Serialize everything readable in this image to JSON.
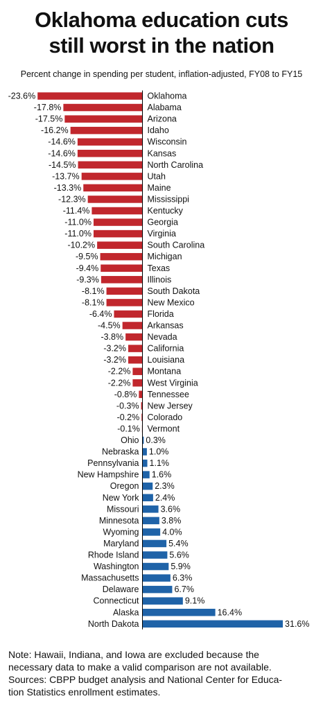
{
  "title_line1": "Oklahoma education cuts",
  "title_line2": "still worst in the nation",
  "subtitle": "Percent change in spending per student, inflation-adjusted, FY08 to FY15",
  "note_lines": [
    "Note:  Hawaii, Indiana, and Iowa are excluded because the",
    "necessary data to make a valid comparison are not available.",
    "Sources: CBPP budget analysis and National Center for Educa-",
    "tion Statistics enrollment estimates."
  ],
  "colors": {
    "negative": "#c1272d",
    "positive": "#1f63a8",
    "axis": "#000000"
  },
  "chart_data": {
    "type": "bar",
    "orientation": "horizontal",
    "value_unit": "%",
    "categories": [
      "Oklahoma",
      "Alabama",
      "Arizona",
      "Idaho",
      "Wisconsin",
      "Kansas",
      "North Carolina",
      "Utah",
      "Maine",
      "Mississippi",
      "Kentucky",
      "Georgia",
      "Virginia",
      "South Carolina",
      "Michigan",
      "Texas",
      "Illinois",
      "South Dakota",
      "New Mexico",
      "Florida",
      "Arkansas",
      "Nevada",
      "California",
      "Louisiana",
      "Montana",
      "West Virginia",
      "Tennessee",
      "New Jersey",
      "Colorado",
      "Vermont",
      "Ohio",
      "Nebraska",
      "Pennsylvania",
      "New Hampshire",
      "Oregon",
      "New York",
      "Missouri",
      "Minnesota",
      "Wyoming",
      "Maryland",
      "Rhode Island",
      "Washington",
      "Massachusetts",
      "Delaware",
      "Connecticut",
      "Alaska",
      "North Dakota"
    ],
    "values": [
      -23.6,
      -17.8,
      -17.5,
      -16.2,
      -14.6,
      -14.6,
      -14.5,
      -13.7,
      -13.3,
      -12.3,
      -11.4,
      -11.0,
      -11.0,
      -10.2,
      -9.5,
      -9.4,
      -9.3,
      -8.1,
      -8.1,
      -6.4,
      -4.5,
      -3.8,
      -3.2,
      -3.2,
      -2.2,
      -2.2,
      -0.8,
      -0.3,
      -0.2,
      -0.1,
      0.3,
      1.0,
      1.1,
      1.6,
      2.3,
      2.4,
      3.6,
      3.8,
      4.0,
      5.4,
      5.6,
      5.9,
      6.3,
      6.7,
      9.1,
      16.4,
      31.6
    ],
    "data_labels": [
      "-23.6%",
      "-17.8%",
      "-17.5%",
      "-16.2%",
      "-14.6%",
      "-14.6%",
      "-14.5%",
      "-13.7%",
      "-13.3%",
      "-12.3%",
      "-11.4%",
      "-11.0%",
      "-11.0%",
      "-10.2%",
      "-9.5%",
      "-9.4%",
      "-9.3%",
      "-8.1%",
      "-8.1%",
      "-6.4%",
      "-4.5%",
      "-3.8%",
      "-3.2%",
      "-3.2%",
      "-2.2%",
      "-2.2%",
      "-0.8%",
      "-0.3%",
      "-0.2%",
      "-0.1%",
      "0.3%",
      "1.0%",
      "1.1%",
      "1.6%",
      "2.3%",
      "2.4%",
      "3.6%",
      "3.8%",
      "4.0%",
      "5.4%",
      "5.6%",
      "5.9%",
      "6.3%",
      "6.7%",
      "9.1%",
      "16.4%",
      "31.6%"
    ],
    "grid": false,
    "legend": "none"
  }
}
